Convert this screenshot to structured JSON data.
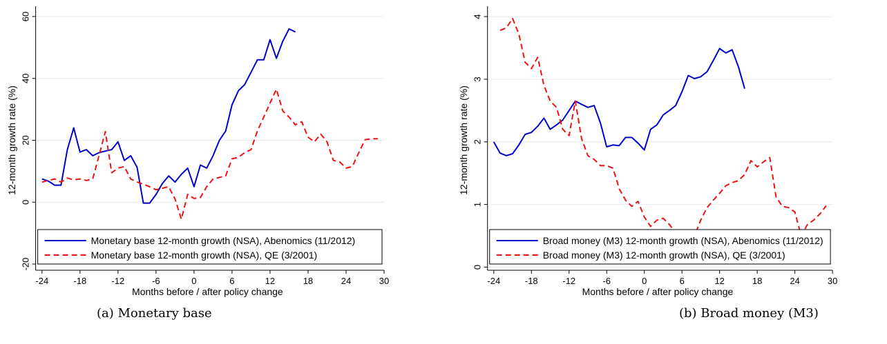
{
  "chart_data": [
    {
      "type": "line",
      "caption": "(a) Monetary base",
      "xlabel": "Months before / after policy change",
      "ylabel": "12-month growth rate (%)",
      "xlim": [
        -25,
        30
      ],
      "ylim": [
        -22,
        62
      ],
      "xticks": [
        -24,
        -18,
        -12,
        -6,
        0,
        6,
        12,
        18,
        24,
        30
      ],
      "yticks": [
        -20,
        0,
        20,
        40,
        60
      ],
      "grid": "horizontal",
      "legend_position": "bottom",
      "series": [
        {
          "name": "Monetary base 12-month growth (NSA), Abenomics (11/2012)",
          "color": "#0000cc",
          "style": "solid",
          "x": [
            -24,
            -23,
            -22,
            -21,
            -20,
            -19,
            -18,
            -17,
            -16,
            -15,
            -14,
            -13,
            -12,
            -11,
            -10,
            -9,
            -8,
            -7,
            -6,
            -5,
            -4,
            -3,
            -2,
            -1,
            0,
            1,
            2,
            3,
            4,
            5,
            6,
            7,
            8,
            9,
            10,
            11,
            12,
            13,
            14,
            15,
            16
          ],
          "y": [
            7.5,
            6.8,
            5.5,
            5.5,
            17,
            24,
            16.2,
            17,
            15,
            16,
            16.5,
            17,
            19.5,
            13.5,
            15,
            11.3,
            -0.3,
            -0.3,
            2.5,
            6,
            8.5,
            6.5,
            9,
            11,
            5,
            12,
            11,
            15,
            20,
            23,
            31.5,
            36,
            38,
            42,
            46,
            46,
            52.5,
            46.5,
            52,
            56,
            55
          ]
        },
        {
          "name": "Monetary base 12-month growth (NSA), QE (3/2001)",
          "color": "#ee1111",
          "style": "dashed",
          "x": [
            -24,
            -23,
            -22,
            -21,
            -20,
            -19,
            -18,
            -17,
            -16,
            -15,
            -14,
            -13,
            -12,
            -11,
            -10,
            -9,
            -8,
            -7,
            -6,
            -5,
            -4,
            -3,
            -2,
            -1,
            0,
            1,
            2,
            3,
            4,
            5,
            6,
            7,
            8,
            9,
            10,
            11,
            12,
            13,
            14,
            15,
            16,
            17,
            18,
            19,
            20,
            21,
            22,
            23,
            24,
            25,
            26,
            27,
            28,
            29
          ],
          "y": [
            6.5,
            7,
            7.5,
            6.5,
            7.8,
            7.2,
            7.5,
            7,
            7.5,
            15,
            22.8,
            9.5,
            11,
            11.5,
            7.5,
            6.5,
            5.8,
            5,
            4,
            4.5,
            5,
            1,
            -5.5,
            2.5,
            1.2,
            1.5,
            5,
            7.5,
            8,
            8.5,
            14,
            14.5,
            16,
            17,
            23,
            27.5,
            32,
            36.5,
            29.5,
            27.5,
            25,
            26,
            21,
            19.5,
            22,
            19.5,
            13.5,
            13,
            11,
            11.5,
            16,
            20.2,
            20.5,
            20.5
          ]
        }
      ]
    },
    {
      "type": "line",
      "caption": "(b) Broad money (M3)",
      "xlabel": "Months before / after policy change",
      "ylabel": "12-month growth rate (%)",
      "xlim": [
        -25,
        30
      ],
      "ylim": [
        -0.05,
        4.1
      ],
      "xticks": [
        -24,
        -18,
        -12,
        -6,
        0,
        6,
        12,
        18,
        24,
        30
      ],
      "yticks": [
        0,
        1,
        2,
        3,
        4
      ],
      "grid": "horizontal",
      "legend_position": "bottom",
      "series": [
        {
          "name": "Broad money (M3) 12-month growth (NSA), Abenomics (11/2012)",
          "color": "#0000cc",
          "style": "solid",
          "x": [
            -24,
            -23,
            -22,
            -21,
            -20,
            -19,
            -18,
            -17,
            -16,
            -15,
            -14,
            -13,
            -12,
            -11,
            -10,
            -9,
            -8,
            -7,
            -6,
            -5,
            -4,
            -3,
            -2,
            -1,
            0,
            1,
            2,
            3,
            4,
            5,
            6,
            7,
            8,
            9,
            10,
            11,
            12,
            13,
            14,
            15,
            16
          ],
          "y": [
            2.0,
            1.82,
            1.78,
            1.81,
            1.95,
            2.12,
            2.15,
            2.25,
            2.38,
            2.2,
            2.27,
            2.35,
            2.5,
            2.65,
            2.6,
            2.55,
            2.58,
            2.3,
            1.92,
            1.95,
            1.94,
            2.07,
            2.07,
            1.98,
            1.87,
            2.2,
            2.27,
            2.43,
            2.5,
            2.58,
            2.8,
            3.06,
            3.01,
            3.04,
            3.12,
            3.3,
            3.49,
            3.42,
            3.47,
            3.2,
            2.85
          ]
        },
        {
          "name": "Broad money (M3) 12-month growth (NSA), QE (3/2001)",
          "color": "#ee1111",
          "style": "dashed",
          "x": [
            -23,
            -22,
            -21,
            -20,
            -19,
            -18,
            -17,
            -16,
            -15,
            -14,
            -13,
            -12,
            -11,
            -10,
            -9,
            -8,
            -7,
            -6,
            -5,
            -4,
            -3,
            -2,
            -1,
            0,
            1,
            2,
            3,
            4,
            5,
            6,
            7,
            8,
            9,
            10,
            11,
            12,
            13,
            14,
            15,
            16,
            17,
            18,
            19,
            20,
            21,
            22,
            23,
            24,
            25,
            26,
            27,
            28,
            29
          ],
          "y": [
            3.78,
            3.82,
            3.97,
            3.72,
            3.27,
            3.17,
            3.35,
            2.9,
            2.65,
            2.55,
            2.2,
            2.1,
            2.65,
            2.05,
            1.78,
            1.72,
            1.62,
            1.62,
            1.58,
            1.25,
            1.07,
            0.97,
            1.05,
            0.8,
            0.65,
            0.75,
            0.78,
            0.68,
            0.55,
            0.5,
            0.52,
            0.5,
            0.75,
            0.95,
            1.07,
            1.18,
            1.3,
            1.35,
            1.38,
            1.48,
            1.7,
            1.6,
            1.68,
            1.75,
            1.12,
            0.97,
            0.95,
            0.88,
            0.5,
            0.68,
            0.75,
            0.85,
            0.98
          ]
        }
      ]
    }
  ]
}
